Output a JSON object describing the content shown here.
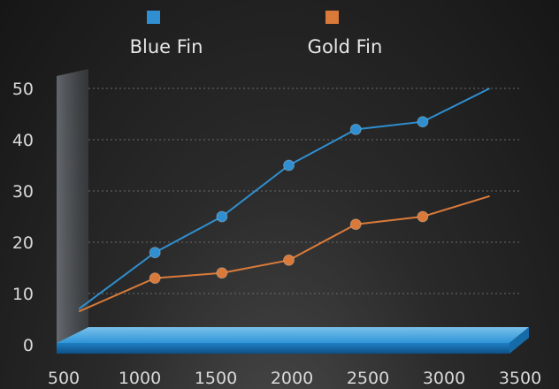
{
  "chart_data": {
    "type": "line",
    "x_ticks": [
      500,
      1000,
      1500,
      2000,
      2500,
      3000,
      3500
    ],
    "y_ticks": [
      0,
      10,
      20,
      30,
      40,
      50
    ],
    "xlim": [
      500,
      3500
    ],
    "ylim": [
      0,
      50
    ],
    "grid": "horizontal dotted",
    "legend_position": "top-center",
    "series": [
      {
        "name": "Blue Fin",
        "color": "#2f8fd0",
        "points": [
          {
            "x": 600,
            "y": 7
          },
          {
            "x": 1100,
            "y": 18
          },
          {
            "x": 1540,
            "y": 25
          },
          {
            "x": 1980,
            "y": 35
          },
          {
            "x": 2420,
            "y": 42
          },
          {
            "x": 2860,
            "y": 43.5
          },
          {
            "x": 3300,
            "y": 50
          }
        ]
      },
      {
        "name": "Gold Fin",
        "color": "#d97a3a",
        "points": [
          {
            "x": 600,
            "y": 6.5
          },
          {
            "x": 1100,
            "y": 13
          },
          {
            "x": 1540,
            "y": 14
          },
          {
            "x": 1980,
            "y": 16.5
          },
          {
            "x": 2420,
            "y": 23.5
          },
          {
            "x": 2860,
            "y": 25
          },
          {
            "x": 3300,
            "y": 29
          }
        ]
      }
    ]
  }
}
